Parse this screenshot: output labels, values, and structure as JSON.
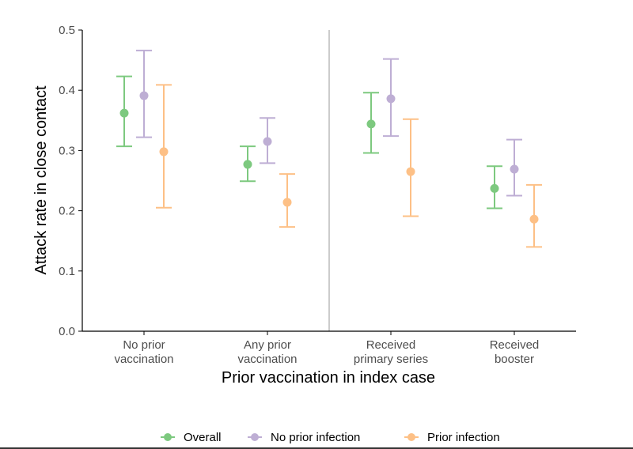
{
  "chart_data": {
    "type": "scatter",
    "subtype": "point-range",
    "xlabel": "Prior vaccination in index case",
    "ylabel": "Attack rate in close contact",
    "ylim": [
      0,
      0.5
    ],
    "yticks": [
      "0.0",
      "0.1",
      "0.2",
      "0.3",
      "0.4",
      "0.5"
    ],
    "categories": [
      [
        "No prior",
        "vaccination"
      ],
      [
        "Any prior",
        "vaccination"
      ],
      [
        "Received",
        "primary series"
      ],
      [
        "Received",
        "booster"
      ]
    ],
    "divider_after_category": 1,
    "legend_position": "bottom",
    "series": [
      {
        "name": "Overall",
        "color": "#7dc97f",
        "values": [
          0.362,
          0.277,
          0.344,
          0.237
        ],
        "lower": [
          0.307,
          0.249,
          0.296,
          0.204
        ],
        "upper": [
          0.423,
          0.307,
          0.396,
          0.274
        ]
      },
      {
        "name": "No prior infection",
        "color": "#beaed4",
        "values": [
          0.391,
          0.315,
          0.386,
          0.269
        ],
        "lower": [
          0.322,
          0.279,
          0.324,
          0.225
        ],
        "upper": [
          0.466,
          0.354,
          0.452,
          0.318
        ]
      },
      {
        "name": "Prior infection",
        "color": "#fdc086",
        "values": [
          0.298,
          0.214,
          0.265,
          0.186
        ],
        "lower": [
          0.205,
          0.173,
          0.191,
          0.14
        ],
        "upper": [
          0.409,
          0.261,
          0.352,
          0.243
        ]
      }
    ]
  }
}
